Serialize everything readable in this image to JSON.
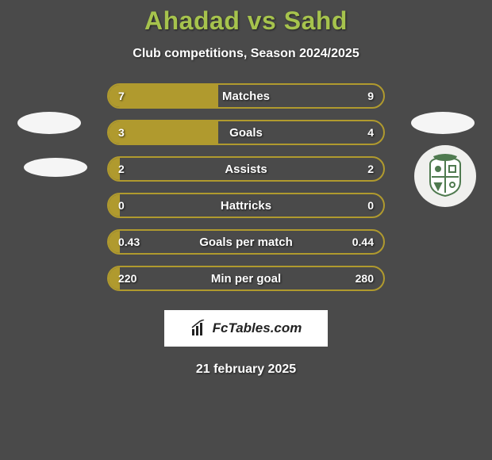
{
  "title": "Ahadad vs Sahd",
  "subtitle": "Club competitions, Season 2024/2025",
  "date": "21 february 2025",
  "branding_text": "FcTables.com",
  "colors": {
    "background": "#4a4a4a",
    "accent": "#b09a2e",
    "title": "#a6c34d",
    "text": "#ffffff"
  },
  "bars": [
    {
      "label": "Matches",
      "left": "7",
      "right": "9",
      "left_pct": 40,
      "right_pct": 0
    },
    {
      "label": "Goals",
      "left": "3",
      "right": "4",
      "left_pct": 40,
      "right_pct": 0
    },
    {
      "label": "Assists",
      "left": "2",
      "right": "2",
      "left_pct": 4,
      "right_pct": 0
    },
    {
      "label": "Hattricks",
      "left": "0",
      "right": "0",
      "left_pct": 4,
      "right_pct": 0
    },
    {
      "label": "Goals per match",
      "left": "0.43",
      "right": "0.44",
      "left_pct": 4,
      "right_pct": 0
    },
    {
      "label": "Min per goal",
      "left": "220",
      "right": "280",
      "left_pct": 4,
      "right_pct": 0
    }
  ]
}
